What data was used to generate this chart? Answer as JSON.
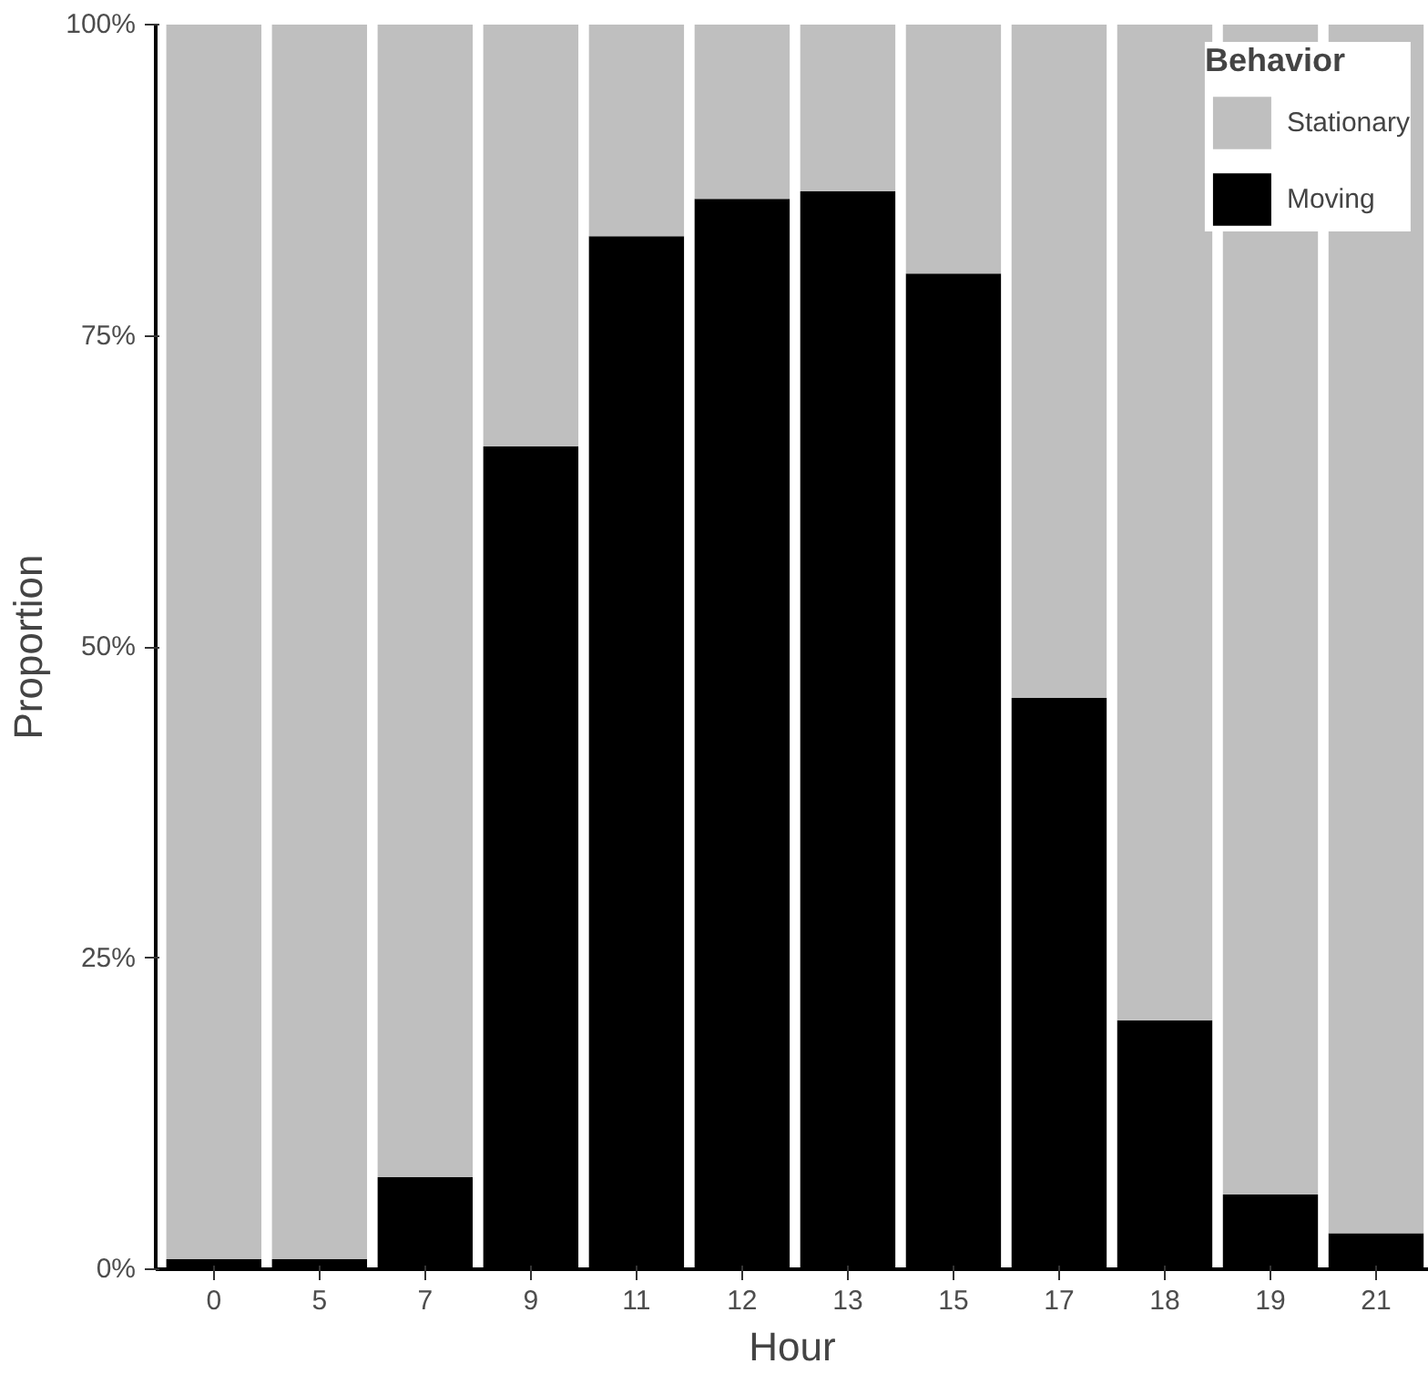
{
  "chart_data": {
    "type": "bar",
    "stacked": true,
    "xlabel": "Hour",
    "ylabel": "Proportion",
    "legend_title": "Behavior",
    "categories": [
      "0",
      "5",
      "7",
      "9",
      "11",
      "12",
      "13",
      "15",
      "17",
      "18",
      "19",
      "21"
    ],
    "series": [
      {
        "name": "Moving",
        "color": "#000000",
        "values": [
          0.8,
          0.8,
          7.4,
          66.1,
          83.0,
          86.0,
          86.6,
          80.0,
          45.9,
          20.0,
          6.0,
          2.9
        ]
      },
      {
        "name": "Stationary",
        "color": "#bfbfbf",
        "values": [
          99.2,
          99.2,
          92.6,
          33.9,
          17.0,
          14.0,
          13.4,
          20.0,
          54.1,
          80.0,
          94.0,
          97.1
        ]
      }
    ],
    "ylim": [
      0,
      100
    ],
    "yticks": [
      {
        "value": 0,
        "label": "0%"
      },
      {
        "value": 25,
        "label": "25%"
      },
      {
        "value": 50,
        "label": "50%"
      },
      {
        "value": 75,
        "label": "75%"
      },
      {
        "value": 100,
        "label": "100%"
      }
    ],
    "grid": false,
    "legend": "top right"
  }
}
